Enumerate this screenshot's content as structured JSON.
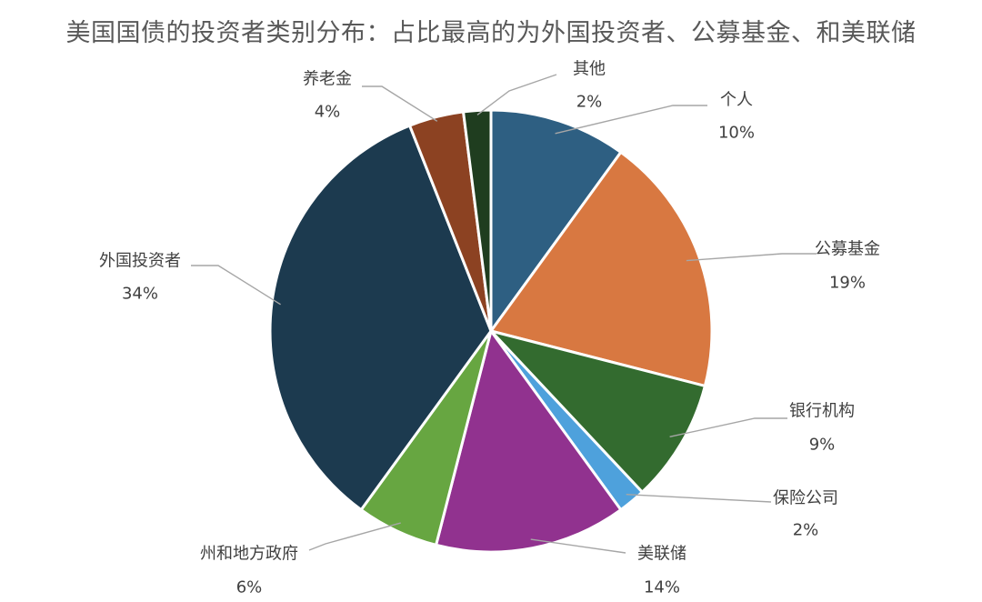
{
  "chart_data": {
    "type": "pie",
    "title": "美国国债的投资者类别分布：占比最高的为外国投资者、公募基金、和美联储",
    "slices": [
      {
        "label": "个人",
        "value": 10,
        "display": "10%",
        "color": "#2e5f82"
      },
      {
        "label": "公募基金",
        "value": 19,
        "display": "19%",
        "color": "#d87841"
      },
      {
        "label": "银行机构",
        "value": 9,
        "display": "9%",
        "color": "#336b2f"
      },
      {
        "label": "保险公司",
        "value": 2,
        "display": "2%",
        "color": "#4ea1dc"
      },
      {
        "label": "美联储",
        "value": 14,
        "display": "14%",
        "color": "#91328f"
      },
      {
        "label": "州和地方政府",
        "value": 6,
        "display": "6%",
        "color": "#67a641"
      },
      {
        "label": "外国投资者",
        "value": 34,
        "display": "34%",
        "color": "#1c3a4f"
      },
      {
        "label": "养老金",
        "value": 4,
        "display": "4%",
        "color": "#8c4222"
      },
      {
        "label": "其他",
        "value": 2,
        "display": "2%",
        "color": "#1f3d1f"
      }
    ],
    "legend": "none",
    "data_labels": "outside-with-leader-lines"
  }
}
